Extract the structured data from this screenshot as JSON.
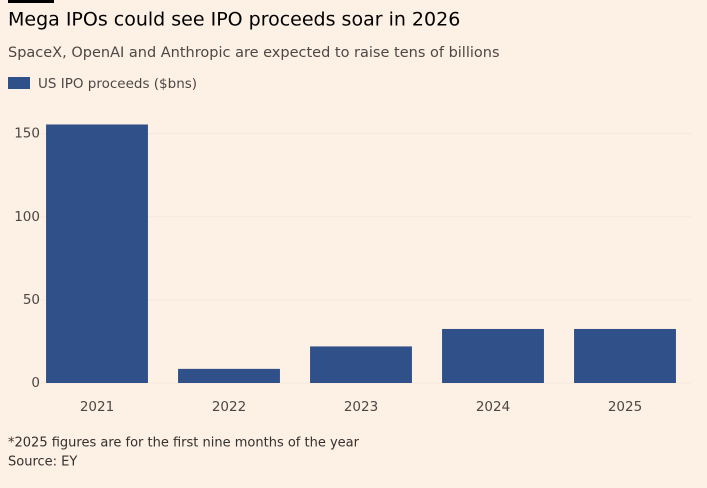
{
  "chart_data": {
    "type": "bar",
    "title": "Mega IPOs could see IPO proceeds soar in 2026",
    "subtitle": "SpaceX, OpenAI and Anthropic are expected to raise tens of billions",
    "categories": [
      "2021",
      "2022",
      "2023",
      "2024",
      "2025"
    ],
    "series": [
      {
        "name": "US IPO proceeds ($bns)",
        "color": "#2f5089",
        "values": [
          155.5,
          8.5,
          22,
          32.5,
          32.5
        ]
      }
    ],
    "ylim": [
      0,
      160
    ],
    "yticks": [
      0,
      50,
      100,
      150
    ],
    "notes": [
      "*2025 figures are for the first nine months of the year",
      "Source: EY"
    ]
  }
}
